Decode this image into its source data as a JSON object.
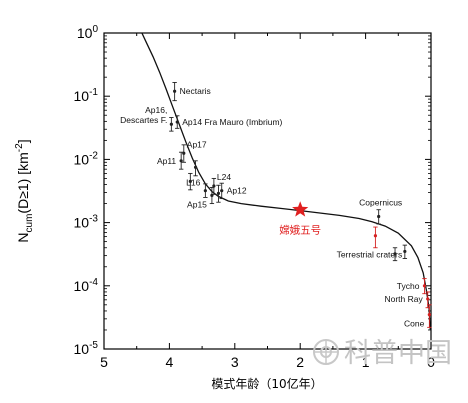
{
  "chart_data": {
    "type": "scatter",
    "title": "",
    "xlabel": "模式年龄（10亿年）",
    "ylabel": {
      "prefix": "N",
      "sub": "cum",
      "cond": "(D≥1) [km",
      "sup": "-2",
      "suffix": "]"
    },
    "x_reversed": true,
    "xlim": [
      5,
      0
    ],
    "ylim_log10": [
      -5,
      0
    ],
    "x_ticks": [
      5,
      4,
      3,
      2,
      1,
      0
    ],
    "y_ticks": [
      {
        "exp": 0,
        "label": "10",
        "sup": "0"
      },
      {
        "exp": -1,
        "label": "10",
        "sup": "-1"
      },
      {
        "exp": -2,
        "label": "10",
        "sup": "-2"
      },
      {
        "exp": -3,
        "label": "10",
        "sup": "-3"
      },
      {
        "exp": -4,
        "label": "10",
        "sup": "-4"
      },
      {
        "exp": -5,
        "label": "10",
        "sup": "-5"
      }
    ],
    "curve": {
      "x": [
        4.42,
        4.35,
        4.25,
        4.15,
        4.05,
        3.95,
        3.85,
        3.75,
        3.65,
        3.55,
        3.45,
        3.35,
        3.25,
        3.1,
        2.9,
        2.6,
        2.3,
        2.0,
        1.7,
        1.4,
        1.1,
        0.9,
        0.7,
        0.5,
        0.3,
        0.2,
        0.12,
        0.07,
        0.03,
        0.01
      ],
      "y": [
        1.0,
        0.7,
        0.42,
        0.24,
        0.13,
        0.068,
        0.036,
        0.019,
        0.0105,
        0.0062,
        0.0041,
        0.0031,
        0.0026,
        0.0022,
        0.002,
        0.00182,
        0.00168,
        0.00155,
        0.00142,
        0.0013,
        0.00116,
        0.00103,
        0.00088,
        0.00068,
        0.00043,
        0.00028,
        0.00016,
        8.5e-05,
        4.5e-05,
        2e-05
      ]
    },
    "points": [
      {
        "label": "Nectaris",
        "x": 3.92,
        "y": 0.12,
        "err": [
          0.085,
          0.165
        ],
        "color": "#222222",
        "label_pos": "right"
      },
      {
        "label": "Ap16, Descartes F.",
        "x": 3.97,
        "y": 0.036,
        "err": [
          0.028,
          0.046
        ],
        "color": "#222222",
        "label_pos": "left2"
      },
      {
        "label": "Ap14 Fra Mauro (Imbrium)",
        "x": 3.88,
        "y": 0.039,
        "err": [
          0.031,
          0.049
        ],
        "color": "#222222",
        "label_pos": "right"
      },
      {
        "label": "Ap17",
        "x": 3.78,
        "y": 0.0125,
        "err": [
          0.009,
          0.017
        ],
        "color": "#222222",
        "label_pos": "right-up"
      },
      {
        "label": "Ap11",
        "x": 3.82,
        "y": 0.0095,
        "err": [
          0.007,
          0.013
        ],
        "color": "#222222",
        "label_pos": "left"
      },
      {
        "label": "L16",
        "x": 3.45,
        "y": 0.0032,
        "err": [
          0.0025,
          0.0041
        ],
        "color": "#222222",
        "label_pos": "left-up"
      },
      {
        "label": "L24",
        "x": 3.32,
        "y": 0.0038,
        "err": [
          0.0028,
          0.005
        ],
        "color": "#222222",
        "label_pos": "right-up"
      },
      {
        "label": "Ap12",
        "x": 3.2,
        "y": 0.0032,
        "err": [
          0.0024,
          0.0042
        ],
        "color": "#222222",
        "label_pos": "right"
      },
      {
        "label": "Ap15",
        "x": 3.35,
        "y": 0.0027,
        "err": [
          0.002,
          0.0036
        ],
        "color": "#222222",
        "label_pos": "left-down"
      },
      {
        "label": "Copernicus",
        "x": 0.8,
        "y": 0.00125,
        "err": [
          0.00095,
          0.0016
        ],
        "color": "#222222",
        "label_pos": "above"
      },
      {
        "label": "Terrestrial craters",
        "x": 0.85,
        "y": 0.00062,
        "err": [
          0.0004,
          0.00085
        ],
        "color": "#d42020",
        "label_pos": "below"
      },
      {
        "label": "Tycho",
        "x": 0.1,
        "y": 0.0001,
        "err": [
          7.5e-05,
          0.00013
        ],
        "color": "#d42020",
        "label_pos": "left"
      },
      {
        "label": "North Ray",
        "x": 0.05,
        "y": 6.2e-05,
        "err": [
          4.5e-05,
          8e-05
        ],
        "color": "#d42020",
        "label_pos": "left"
      },
      {
        "label": "Cone",
        "x": 0.025,
        "y": 3.5e-05,
        "err": [
          2.2e-05,
          5e-05
        ],
        "color": "#d42020",
        "label_pos": "left-down"
      }
    ],
    "extra_points": [
      {
        "x": 3.6,
        "y": 0.0075,
        "err": [
          0.0055,
          0.0095
        ]
      },
      {
        "x": 3.68,
        "y": 0.0045,
        "err": [
          0.0033,
          0.006
        ]
      },
      {
        "x": 3.25,
        "y": 0.0029,
        "err": [
          0.0021,
          0.0039
        ]
      },
      {
        "x": 0.55,
        "y": 0.00032,
        "err": [
          0.00025,
          0.0004
        ]
      },
      {
        "x": 0.4,
        "y": 0.00035,
        "err": [
          0.00027,
          0.00044
        ]
      }
    ],
    "highlight": {
      "label": "嫦娥五号",
      "x": 2.0,
      "y": 0.0016,
      "color": "#e02020",
      "marker": "star"
    },
    "grid": false,
    "legend": "none"
  },
  "watermark": {
    "text": "科普中国"
  }
}
